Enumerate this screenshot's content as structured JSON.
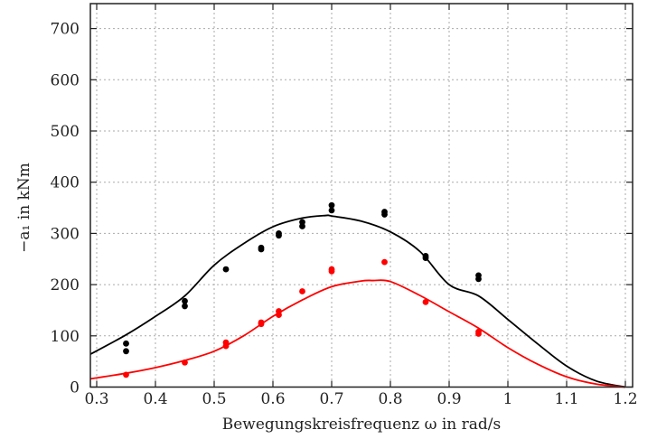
{
  "chart_data": {
    "type": "scatter",
    "title": "",
    "xlabel": "Bewegungskreisfrequenz ω in rad/s",
    "ylabel": "−a₁ in kNm",
    "xlim": [
      0.289,
      1.212
    ],
    "ylim": [
      0,
      750
    ],
    "xticks": [
      "0.3",
      "0.4",
      "0.5",
      "0.6",
      "0.7",
      "0.8",
      "0.9",
      "1",
      "1.1",
      "1.2"
    ],
    "yticks": [
      "0",
      "100",
      "200",
      "300",
      "400",
      "500",
      "600",
      "700"
    ],
    "grid": true,
    "series": [
      {
        "kind": "points",
        "color": "#000000",
        "x": [
          0.35,
          0.35,
          0.45,
          0.45,
          0.52,
          0.58,
          0.58,
          0.61,
          0.61,
          0.65,
          0.65,
          0.7,
          0.7,
          0.79,
          0.79,
          0.86,
          0.86,
          0.95,
          0.95
        ],
        "y": [
          85,
          70,
          168,
          158,
          230,
          272,
          269,
          300,
          296,
          322,
          314,
          355,
          345,
          342,
          337,
          256,
          252,
          218,
          211
        ]
      },
      {
        "kind": "points",
        "color": "#ff0000",
        "x": [
          0.35,
          0.45,
          0.52,
          0.52,
          0.58,
          0.58,
          0.61,
          0.61,
          0.65,
          0.7,
          0.7,
          0.79,
          0.86,
          0.95,
          0.95
        ],
        "y": [
          24,
          48,
          87,
          80,
          126,
          123,
          148,
          141,
          187,
          230,
          226,
          244,
          166,
          108,
          104
        ]
      },
      {
        "kind": "line",
        "color": "#000000",
        "x": [
          0.289,
          0.35,
          0.4,
          0.45,
          0.5,
          0.55,
          0.6,
          0.65,
          0.69,
          0.7,
          0.75,
          0.8,
          0.85,
          0.9,
          0.95,
          1.0,
          1.05,
          1.1,
          1.15,
          1.2
        ],
        "y": [
          64,
          102,
          138,
          178,
          238,
          280,
          313,
          330,
          335,
          334,
          324,
          303,
          265,
          200,
          178,
          132,
          85,
          41,
          12,
          0
        ]
      },
      {
        "kind": "line",
        "color": "#ff0000",
        "x": [
          0.289,
          0.35,
          0.4,
          0.45,
          0.5,
          0.55,
          0.6,
          0.65,
          0.7,
          0.75,
          0.77,
          0.8,
          0.85,
          0.9,
          0.95,
          1.0,
          1.05,
          1.1,
          1.15,
          1.2
        ],
        "y": [
          16,
          27,
          38,
          52,
          70,
          100,
          138,
          170,
          196,
          207,
          208,
          206,
          179,
          147,
          115,
          77,
          45,
          20,
          6,
          0
        ]
      }
    ]
  }
}
